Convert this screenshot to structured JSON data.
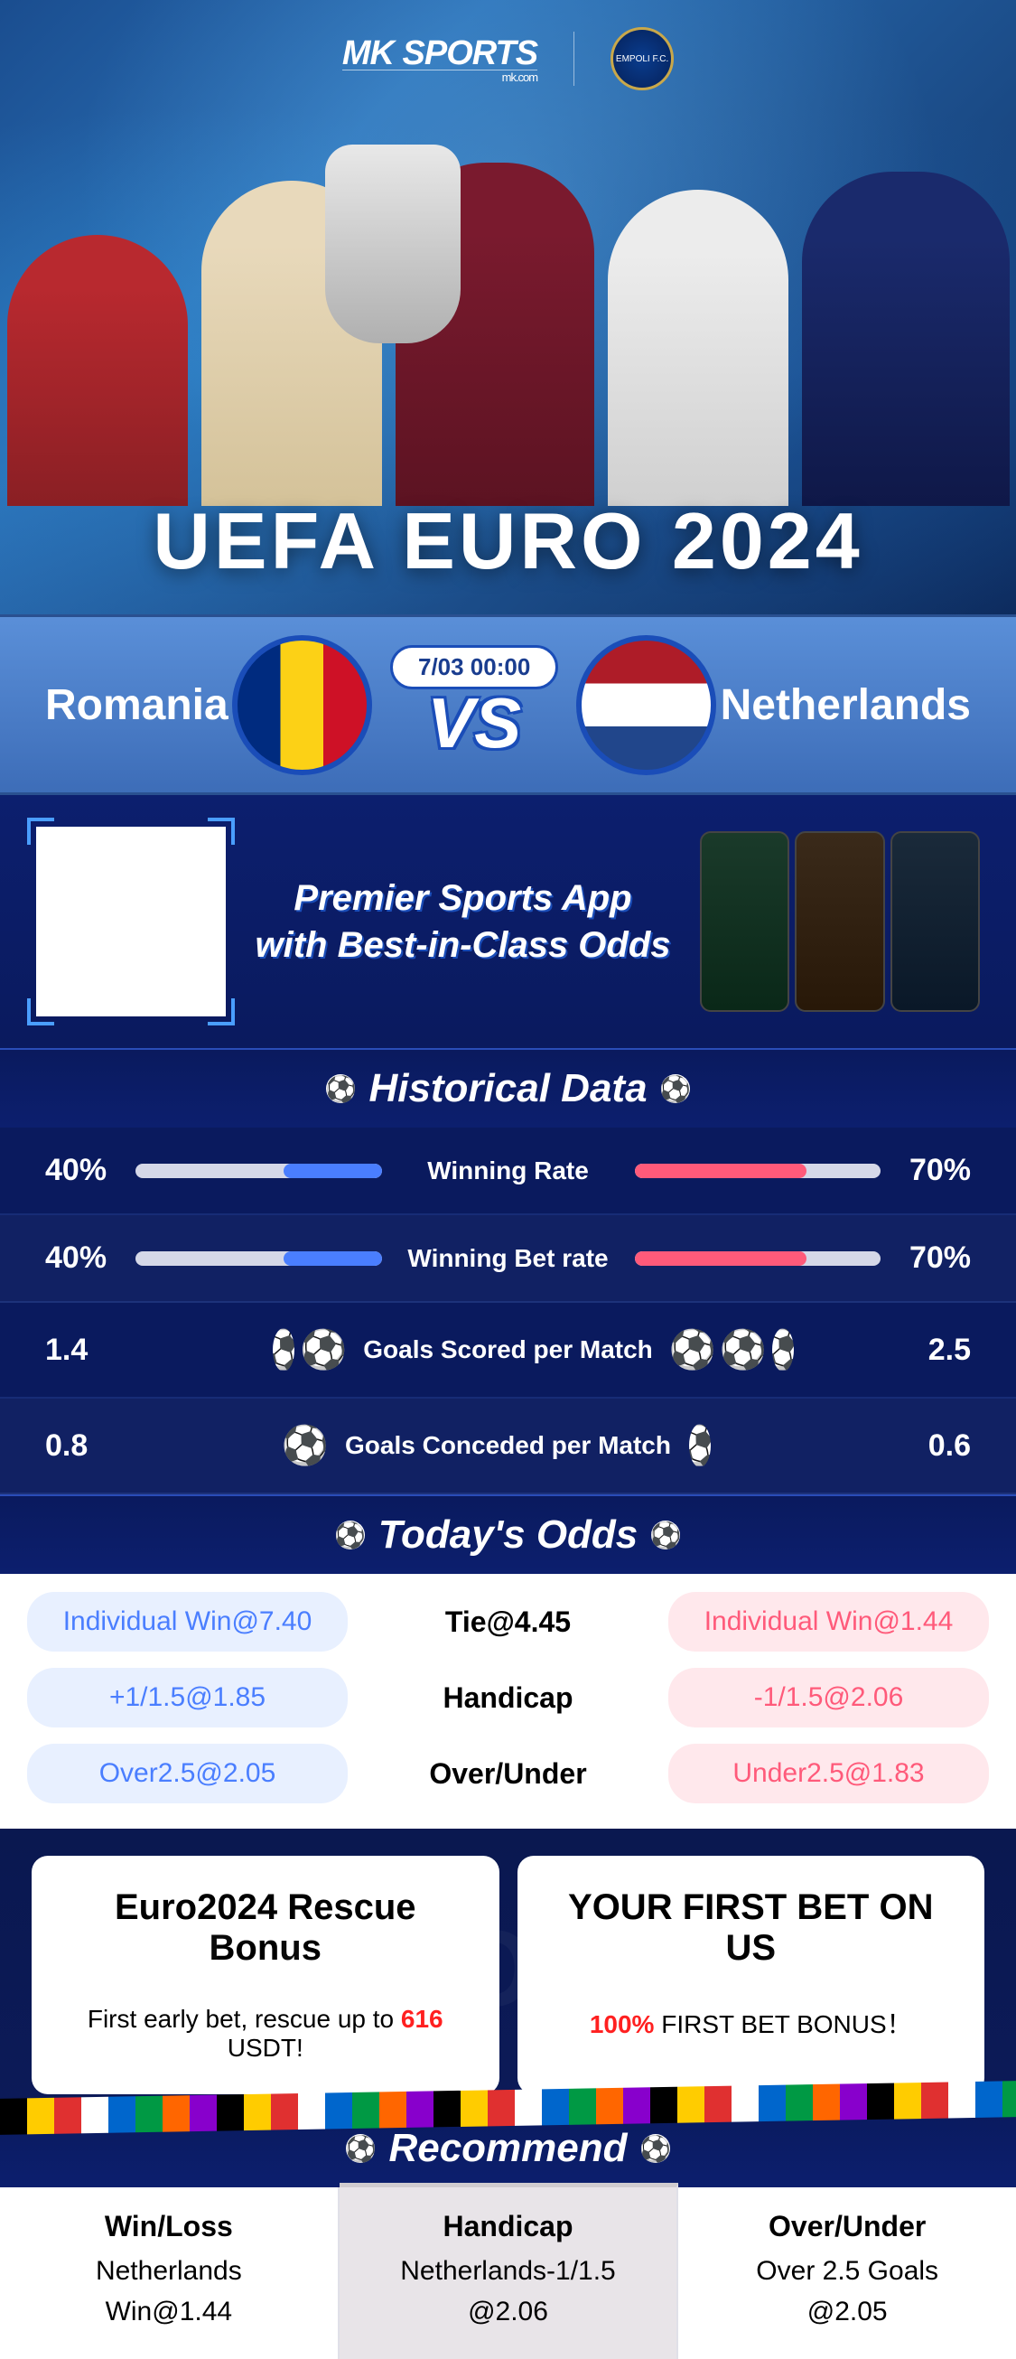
{
  "brand": {
    "name": "MK SPORTS",
    "tagline": "mk.com",
    "club_badge": "EMPOLI F.C."
  },
  "hero": {
    "title": "UEFA EURO 2024"
  },
  "match": {
    "team_left": "Romania",
    "team_right": "Netherlands",
    "datetime": "7/03 00:00",
    "vs": "VS"
  },
  "promo": {
    "line1": "Premier Sports App",
    "line2": "with Best-in-Class Odds"
  },
  "historical": {
    "title": "Historical Data",
    "rows": [
      {
        "type": "bar",
        "label": "Winning Rate",
        "left_value": "40%",
        "left_pct": 40,
        "right_value": "70%",
        "right_pct": 70
      },
      {
        "type": "bar",
        "label": "Winning Bet rate",
        "left_value": "40%",
        "left_pct": 40,
        "right_value": "70%",
        "right_pct": 70
      },
      {
        "type": "balls",
        "label": "Goals Scored per Match",
        "left_value": "1.4",
        "left_balls": 1.5,
        "right_value": "2.5",
        "right_balls": 2.5
      },
      {
        "type": "balls",
        "label": "Goals Conceded per Match",
        "left_value": "0.8",
        "left_balls": 1,
        "right_value": "0.6",
        "right_balls": 0.5
      }
    ]
  },
  "odds": {
    "title": "Today's Odds",
    "rows": [
      {
        "left": "Individual Win@7.40",
        "center": "Tie@4.45",
        "right": "Individual Win@1.44"
      },
      {
        "left": "+1/1.5@1.85",
        "center": "Handicap",
        "right": "-1/1.5@2.06"
      },
      {
        "left": "Over2.5@2.05",
        "center": "Over/Under",
        "right": "Under2.5@1.83"
      }
    ]
  },
  "bonuses": {
    "ghost": "EURO2024",
    "cards": [
      {
        "title": "Euro2024 Rescue Bonus",
        "desc_pre": "First early bet, rescue up to ",
        "desc_hl": "616",
        "desc_post": " USDT!"
      },
      {
        "title": "YOUR FIRST BET ON US",
        "desc_pre": "",
        "desc_hl": "100%",
        "desc_post": " FIRST BET BONUS！"
      }
    ]
  },
  "recommend": {
    "title": "Recommend",
    "cols": [
      {
        "title": "Win/Loss",
        "line1": "Netherlands",
        "line2": "Win@1.44"
      },
      {
        "title": "Handicap",
        "line1": "Netherlands-1/1.5",
        "line2": "@2.06"
      },
      {
        "title": "Over/Under",
        "line1": "Over 2.5 Goals",
        "line2": "@2.05"
      }
    ]
  },
  "colors": {
    "primary_blue": "#1a4db8",
    "accent_blue": "#4a7eff",
    "accent_red": "#ff5a7a",
    "highlight_red": "#ff2020",
    "bg_dark": "#0a1a5e"
  }
}
